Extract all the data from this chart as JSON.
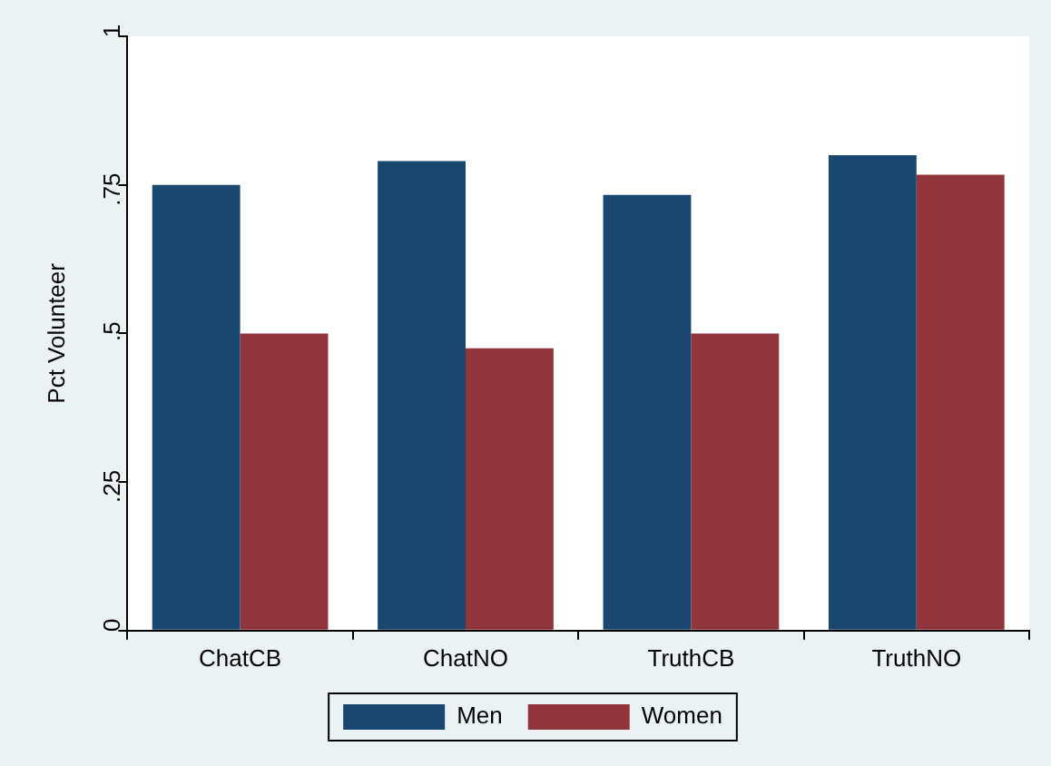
{
  "chart_data": {
    "type": "bar",
    "ylabel": "Pct Volunteer",
    "categories": [
      "ChatCB",
      "ChatNO",
      "TruthCB",
      "TruthNO"
    ],
    "series": [
      {
        "name": "Men",
        "color": "#1a476f",
        "values": [
          0.75,
          0.79,
          0.733,
          0.8
        ]
      },
      {
        "name": "Women",
        "color": "#90353b",
        "values": [
          0.5,
          0.475,
          0.5,
          0.767
        ]
      }
    ],
    "ylim": [
      0,
      1
    ],
    "yticks": [
      0,
      {
        "value": 0.25,
        "label": ".25"
      },
      {
        "value": 0.5,
        "label": ".5"
      },
      {
        "value": 0.75,
        "label": ".75"
      },
      1
    ],
    "grid": false,
    "legend": "bottom"
  }
}
